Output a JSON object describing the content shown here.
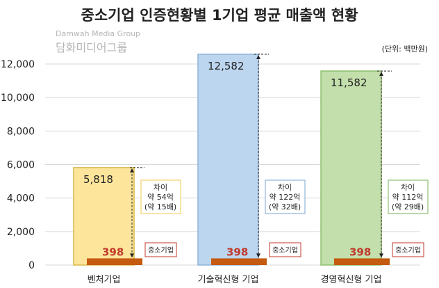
{
  "chart_data": {
    "type": "bar",
    "title": "중소기업 인증현황별 1기업 평균 매출액 현황",
    "unit_note": "(단위: 백만원)",
    "categories": [
      "벤처기업",
      "기술혁신형 기업",
      "경영혁신형 기업"
    ],
    "series": [
      {
        "name": "",
        "values": [
          5818,
          12582,
          11582
        ],
        "colors": [
          "#fde59c",
          "#bcd6ef",
          "#c3dfac"
        ],
        "borders": [
          "#d9b84a",
          "#8fb3d9",
          "#8fbf70"
        ]
      },
      {
        "name": "중소기업",
        "values": [
          398,
          398,
          398
        ],
        "color": "#c55a11"
      }
    ],
    "value_labels": [
      "5,818",
      "12,582",
      "11,582"
    ],
    "small_labels": [
      "398",
      "398",
      "398"
    ],
    "small_series_label": "중소기업",
    "annotations": [
      {
        "line1": "차이",
        "line2": "약 54억",
        "line3": "(약 15배)",
        "border": "#f2d26b"
      },
      {
        "line1": "차이",
        "line2": "약 122억",
        "line3": "(약 32배)",
        "border": "#8fb3d9"
      },
      {
        "line1": "차이",
        "line2": "약 112억",
        "line3": "(약 29배)",
        "border": "#8fbf70"
      }
    ],
    "yticks": [
      0,
      2000,
      4000,
      6000,
      8000,
      10000,
      12000
    ],
    "ytick_labels": [
      "0",
      "2,000",
      "4,000",
      "6,000",
      "8,000",
      "10,000",
      "12,000"
    ],
    "ylim": [
      0,
      12600
    ],
    "grid": true
  },
  "watermark": {
    "line1": "Damwah Media Group",
    "line2": "담화미디어그룹"
  }
}
